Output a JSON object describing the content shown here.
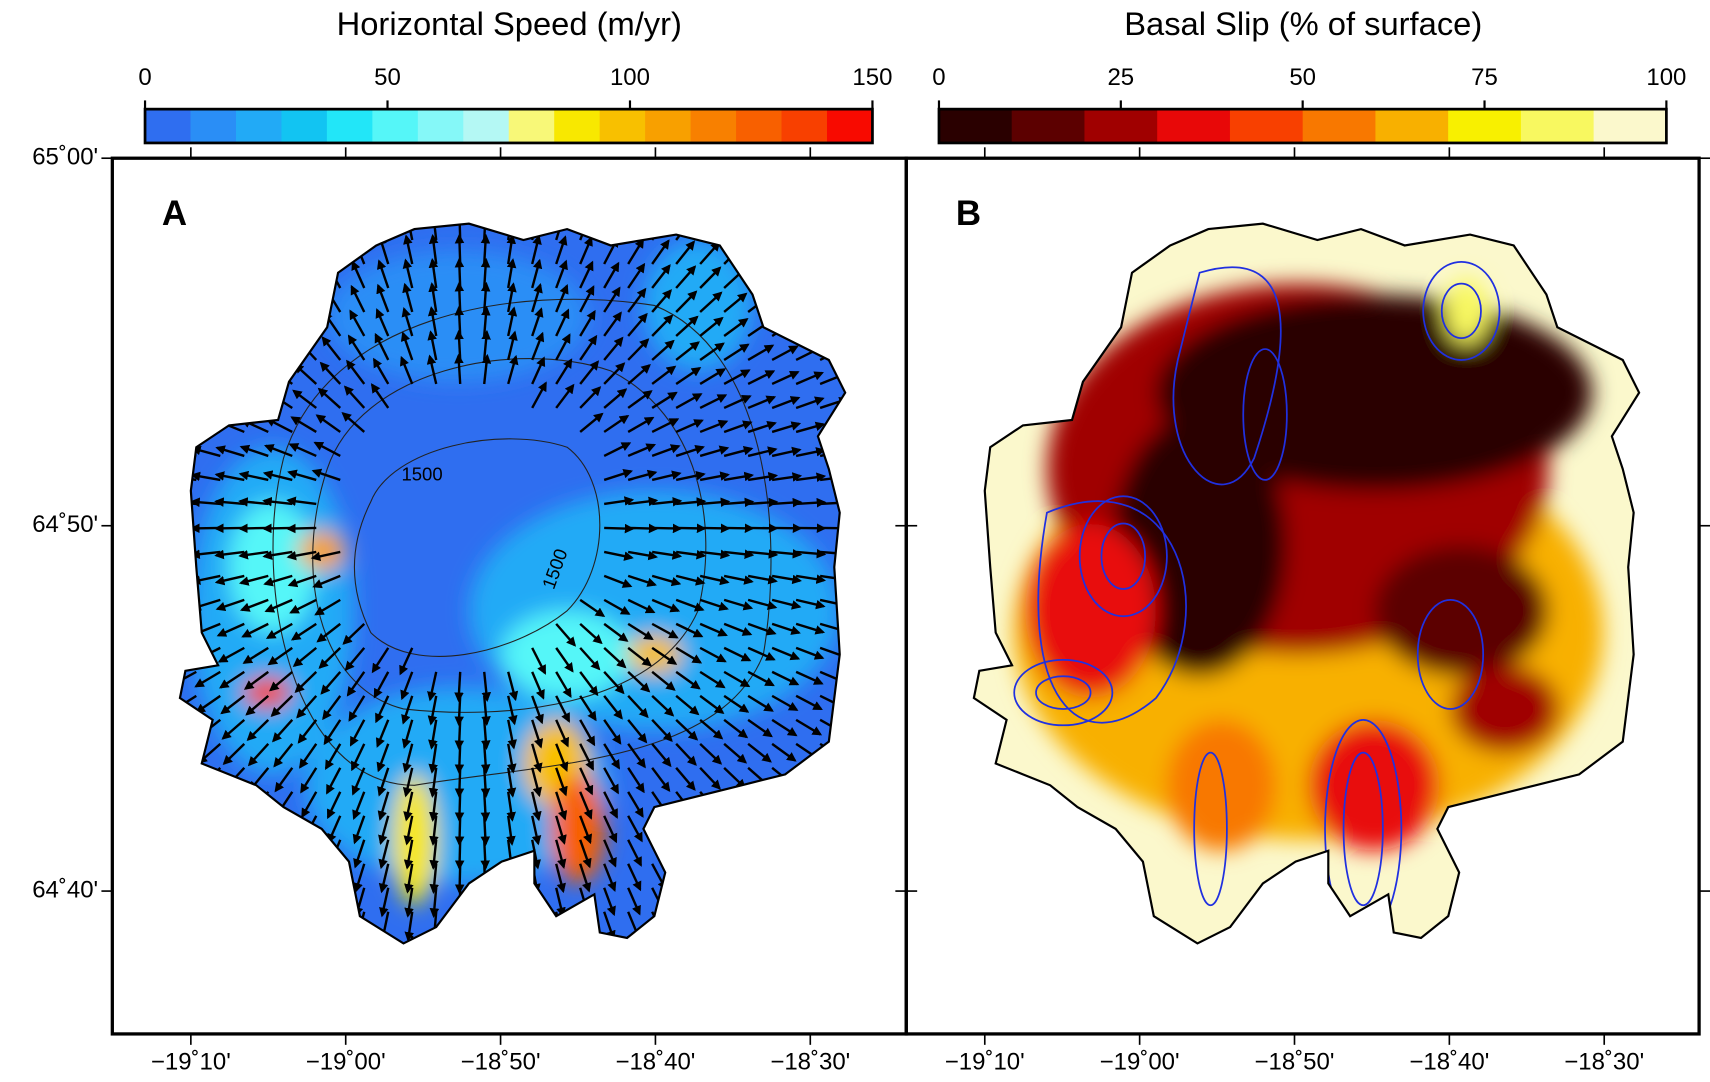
{
  "colorbars": [
    {
      "title": "Horizontal Speed (m/yr)",
      "lim": [
        0,
        150
      ],
      "ticks": [
        0,
        50,
        100,
        150
      ],
      "colors": [
        "#2f6ef0",
        "#2a8ef6",
        "#22aaf6",
        "#12c4f2",
        "#22e6f8",
        "#55f6f8",
        "#85f8f8",
        "#b4f8f4",
        "#f8f878",
        "#f8e800",
        "#f8c000",
        "#f8a000",
        "#f88000",
        "#f86000",
        "#f84000",
        "#f80a00"
      ]
    },
    {
      "title": "Basal Slip (% of surface)",
      "lim": [
        0,
        100
      ],
      "ticks": [
        0,
        25,
        50,
        75,
        100
      ],
      "colors": [
        "#2a0000",
        "#5c0000",
        "#a00000",
        "#e80808",
        "#f84000",
        "#f87800",
        "#f8b000",
        "#f8f000",
        "#f8f860",
        "#fbf8cc"
      ]
    }
  ],
  "panels": [
    {
      "label": "A",
      "contour_labels": [
        "1500",
        "1500"
      ]
    },
    {
      "label": "B"
    }
  ],
  "y_tick_labels": [
    "65˚00'",
    "64˚50'",
    "64˚40'"
  ],
  "x_tick_labels": [
    "−19˚10'",
    "−19˚00'",
    "−18˚50'",
    "−18˚40'",
    "−18˚30'"
  ]
}
